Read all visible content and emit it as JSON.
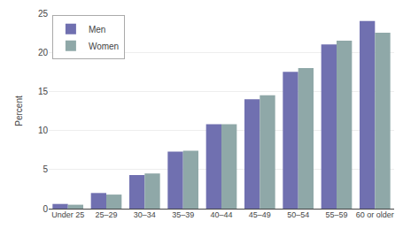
{
  "chart_data": {
    "type": "bar",
    "ylabel": "Percent",
    "categories": [
      "Under 25",
      "25–29",
      "30–34",
      "35–39",
      "40–44",
      "45–49",
      "50–54",
      "55–59",
      "60 or older"
    ],
    "series": [
      {
        "name": "Men",
        "color": "#7070b0",
        "values": [
          0.6,
          2.0,
          4.3,
          7.3,
          10.8,
          14.0,
          17.5,
          21.0,
          24.0
        ]
      },
      {
        "name": "Women",
        "color": "#8fa8a8",
        "values": [
          0.5,
          1.8,
          4.5,
          7.4,
          10.8,
          14.5,
          18.0,
          21.5,
          22.5
        ]
      }
    ],
    "ylim": [
      0,
      25
    ],
    "yticks": [
      0,
      5,
      10,
      15,
      20,
      25
    ],
    "grid": true,
    "legend": "upper left"
  }
}
